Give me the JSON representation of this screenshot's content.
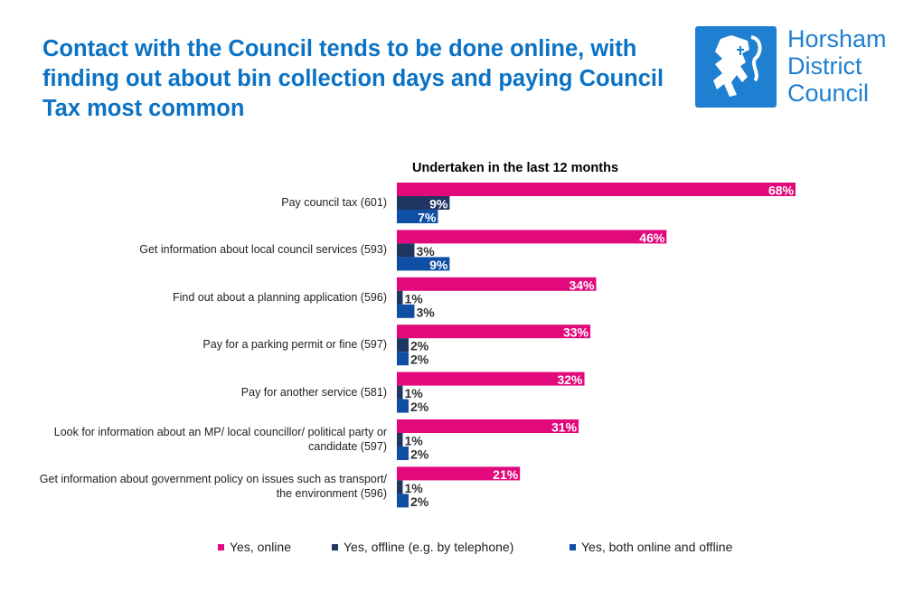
{
  "title": "Contact with the Council tends to be done online, with finding out about bin collection days and paying Council Tax most common",
  "logo": {
    "text": [
      "Horsham",
      "District",
      "Council"
    ],
    "color": "#1F7FD1"
  },
  "chart_data": {
    "type": "bar",
    "orientation": "horizontal",
    "title": "Undertaken in the last 12 months",
    "categories": [
      "Pay council tax (601)",
      "Get information about local council services (593)",
      "Find out about a planning application (596)",
      "Pay for a parking permit or fine (597)",
      "Pay for another service (581)",
      "Look for information about an MP/ local councillor/ political party or candidate (597)",
      "Get information about government policy on issues such as transport/ the environment (596)"
    ],
    "series": [
      {
        "name": "Yes, online",
        "color": "#E2097C",
        "values": [
          68,
          46,
          34,
          33,
          32,
          31,
          21
        ]
      },
      {
        "name": "Yes, offline (e.g. by telephone)",
        "color": "#1F3562",
        "values": [
          9,
          3,
          1,
          2,
          1,
          1,
          1
        ]
      },
      {
        "name": "Yes, both online and offline",
        "color": "#0F4FA3",
        "values": [
          7,
          9,
          3,
          2,
          2,
          2,
          2
        ]
      }
    ],
    "value_format": "percent",
    "xlim": [
      0,
      68
    ],
    "grid": false,
    "legend_position": "bottom"
  }
}
